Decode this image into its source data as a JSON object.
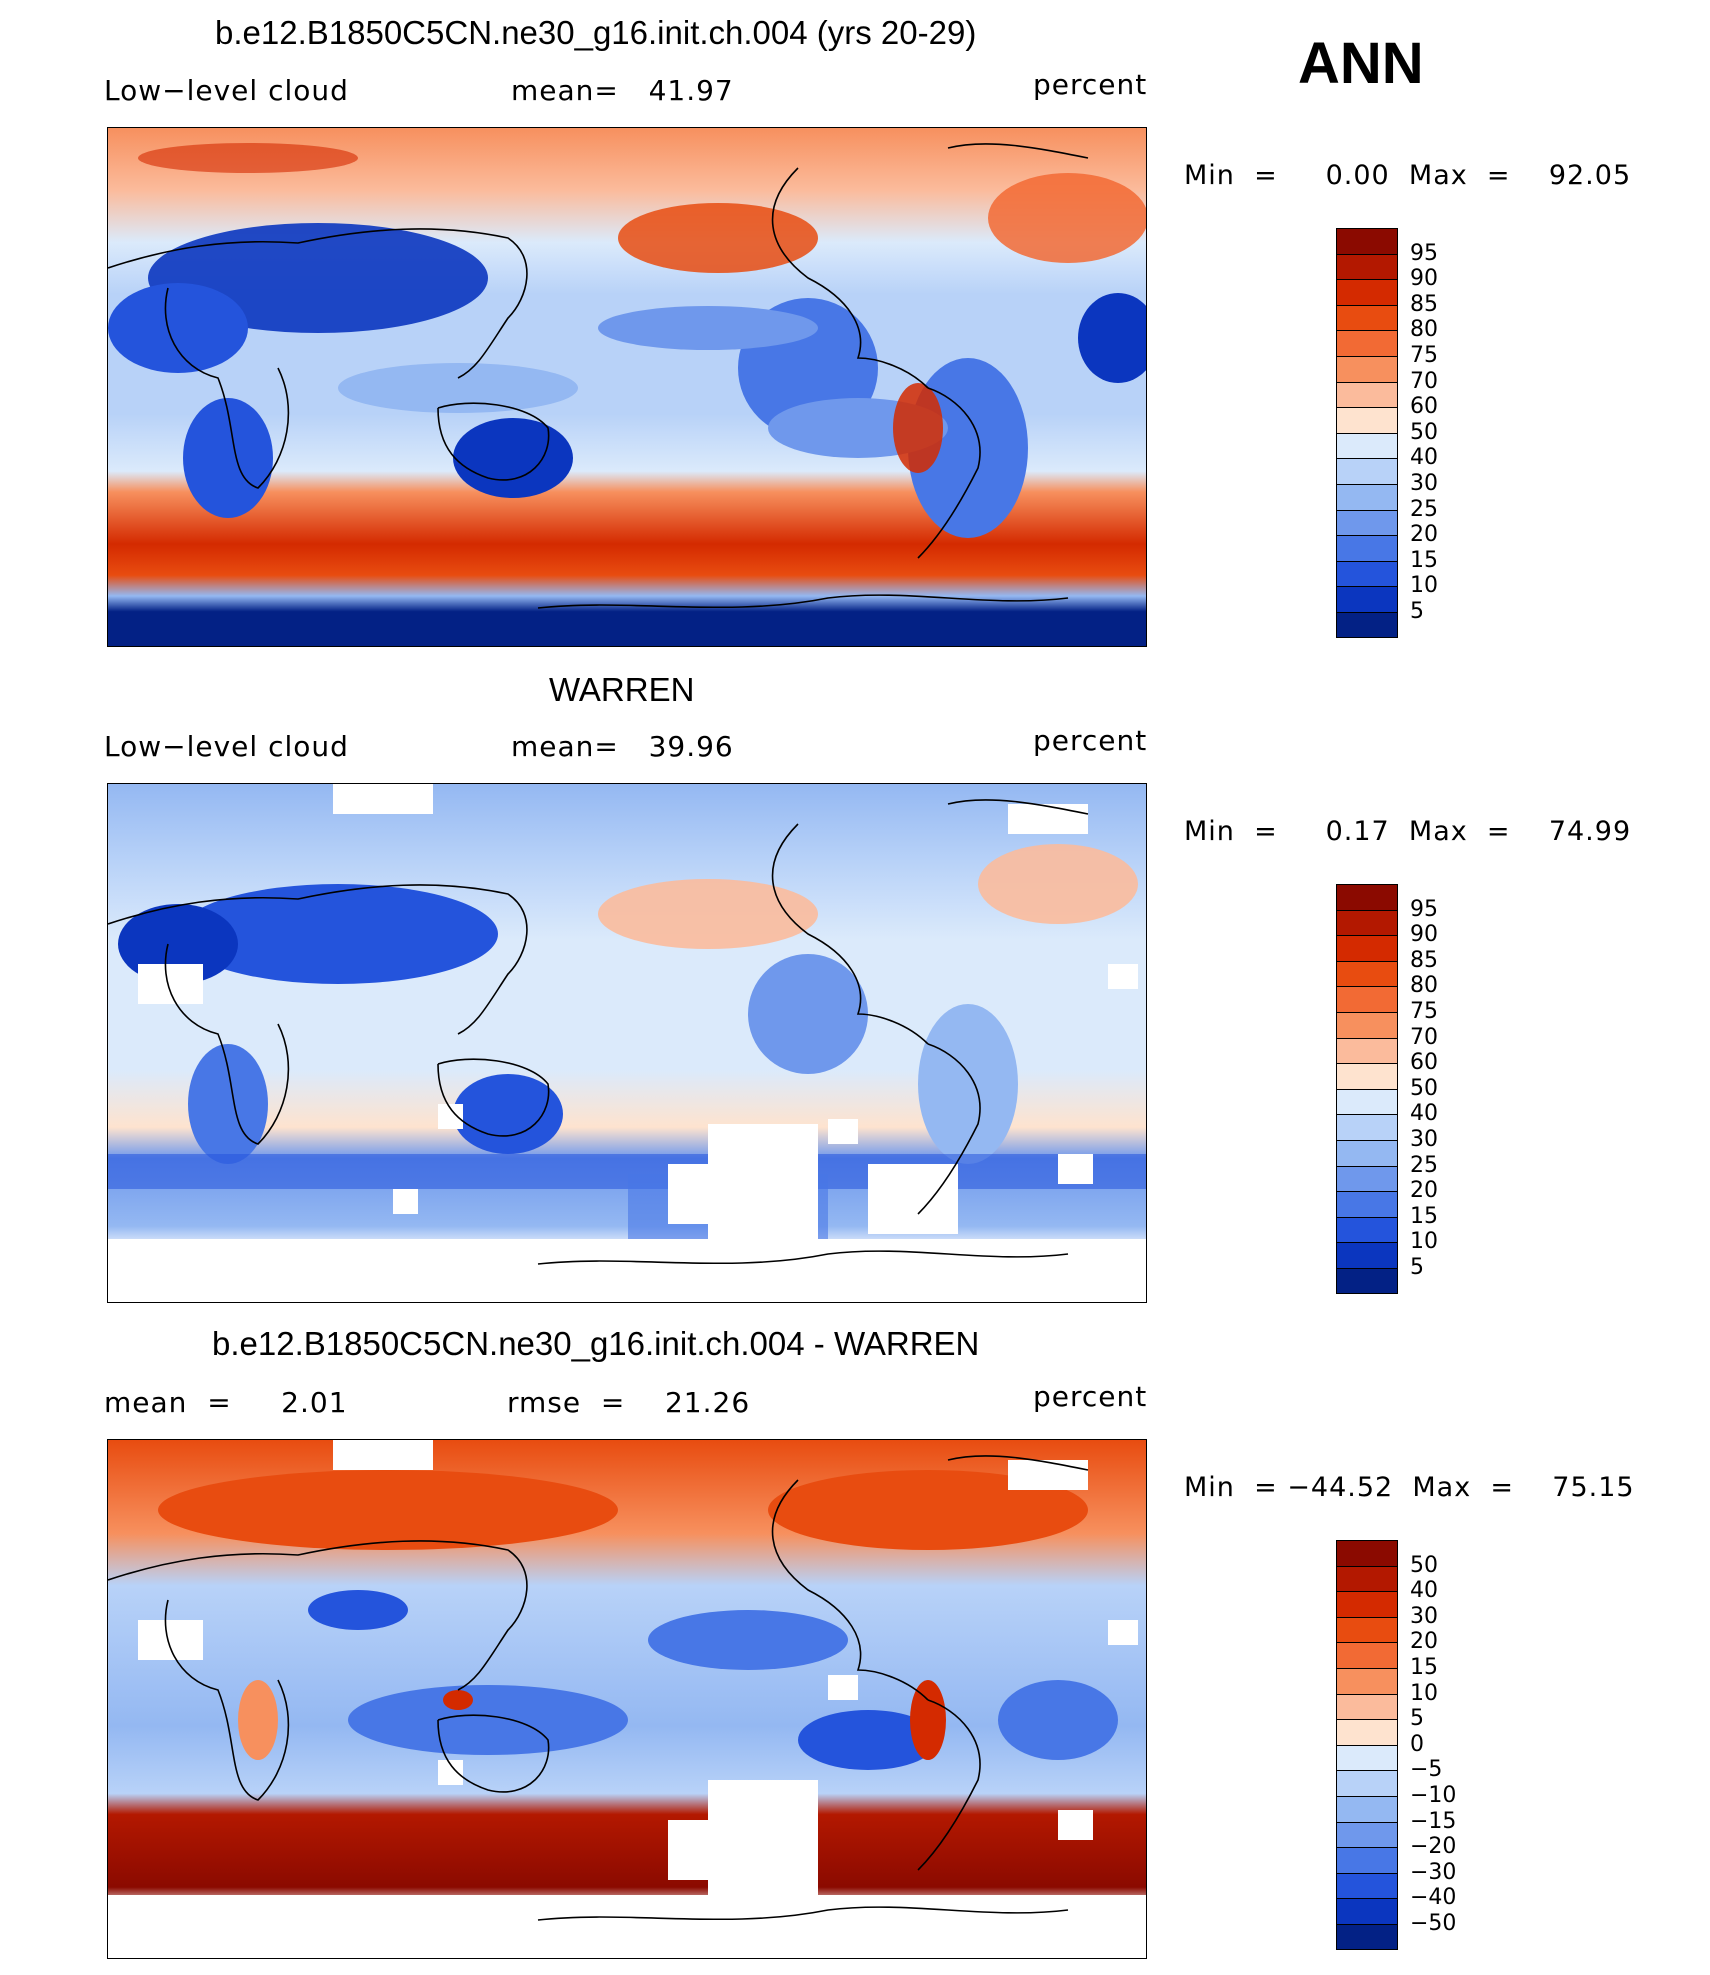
{
  "season": "ANN",
  "panels": [
    {
      "title": "b.e12.B1850C5CN.ne30_g16.init.ch.004 (yrs 20-29)",
      "left_label": "Low−level cloud",
      "mid_label": "mean=   41.97",
      "right_label": "percent",
      "minmax": "Min  =     0.00  Max  =    92.05",
      "scale": "abs"
    },
    {
      "title": "WARREN",
      "left_label": "Low−level cloud",
      "mid_label": "mean=   39.96",
      "right_label": "percent",
      "minmax": "Min  =     0.17  Max  =    74.99",
      "scale": "abs"
    },
    {
      "title": "b.e12.B1850C5CN.ne30_g16.init.ch.004 - WARREN",
      "left_label": "mean  =     2.01",
      "mid_label": "rmse  =    21.26",
      "right_label": "percent",
      "minmax": "Min  = −44.52  Max  =    75.15",
      "scale": "diff"
    }
  ],
  "colorbars": {
    "abs": {
      "labels": [
        "95",
        "90",
        "85",
        "80",
        "75",
        "70",
        "60",
        "50",
        "40",
        "30",
        "25",
        "20",
        "15",
        "10",
        "5"
      ],
      "colors": [
        "#8b0a00",
        "#b31800",
        "#d42a00",
        "#e84c10",
        "#f26a34",
        "#f7905e",
        "#fbbb9c",
        "#fee3cf",
        "#dbeafb",
        "#b8d2f8",
        "#94b8f2",
        "#6f98ec",
        "#4877e6",
        "#2454dc",
        "#0b36bf",
        "#032185"
      ]
    },
    "diff": {
      "labels": [
        "50",
        "40",
        "30",
        "20",
        "15",
        "10",
        "5",
        "0",
        "−5",
        "−10",
        "−15",
        "−20",
        "−30",
        "−40",
        "−50"
      ],
      "colors": [
        "#8b0a00",
        "#b31800",
        "#d42a00",
        "#e84c10",
        "#f26a34",
        "#f7905e",
        "#fbbb9c",
        "#fee3cf",
        "#dbeafb",
        "#b8d2f8",
        "#94b8f2",
        "#6f98ec",
        "#4877e6",
        "#2454dc",
        "#0b36bf",
        "#032185"
      ]
    }
  }
}
